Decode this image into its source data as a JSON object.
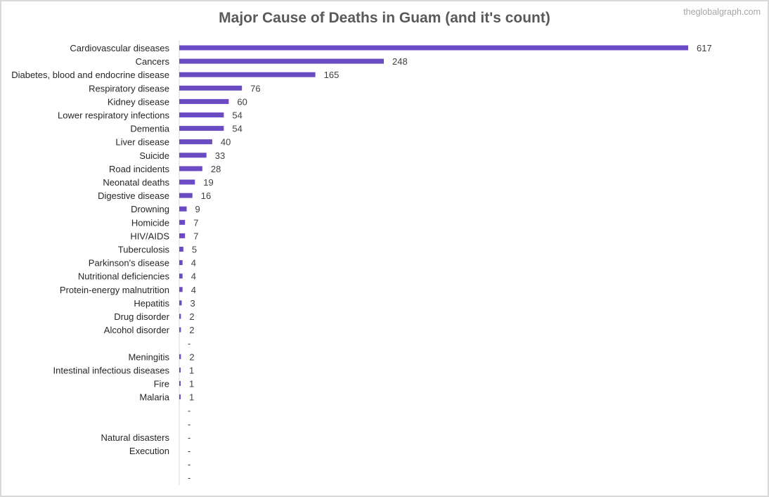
{
  "watermark": "theglobalgraph.com",
  "chart_data": {
    "type": "bar",
    "orientation": "horizontal",
    "title": "Major Cause of Deaths in Guam (and it's count)",
    "bar_color": "#6a4bc4",
    "categories": [
      "Cardiovascular diseases",
      "Cancers",
      "Diabetes, blood and endocrine disease",
      "Respiratory disease",
      "Kidney disease",
      "Lower respiratory infections",
      "Dementia",
      "Liver disease",
      "Suicide",
      "Road incidents",
      "Neonatal deaths",
      "Digestive disease",
      "Drowning",
      "Homicide",
      "HIV/AIDS",
      "Tuberculosis",
      "Parkinson's disease",
      "Nutritional deficiencies",
      "Protein-energy malnutrition",
      "Hepatitis",
      "Drug disorder",
      "Alcohol disorder",
      "",
      "Meningitis",
      "Intestinal infectious diseases",
      "Fire",
      "Malaria",
      "",
      "",
      "Natural disasters",
      "Execution",
      "",
      ""
    ],
    "values": [
      617,
      248,
      165,
      76,
      60,
      54,
      54,
      40,
      33,
      28,
      19,
      16,
      9,
      7,
      7,
      5,
      4,
      4,
      4,
      3,
      2,
      2,
      null,
      2,
      1,
      1,
      1,
      null,
      null,
      null,
      null,
      null,
      null
    ],
    "value_labels": [
      "617",
      "248",
      "165",
      "76",
      "60",
      "54",
      "54",
      "40",
      "33",
      "28",
      "19",
      "16",
      "9",
      "7",
      "7",
      "5",
      "4",
      "4",
      "4",
      "3",
      "2",
      "2",
      "-",
      "2",
      "1",
      "1",
      "1",
      "-",
      "-",
      "-",
      "-",
      "-",
      "-"
    ],
    "xlim": [
      0,
      617
    ]
  }
}
